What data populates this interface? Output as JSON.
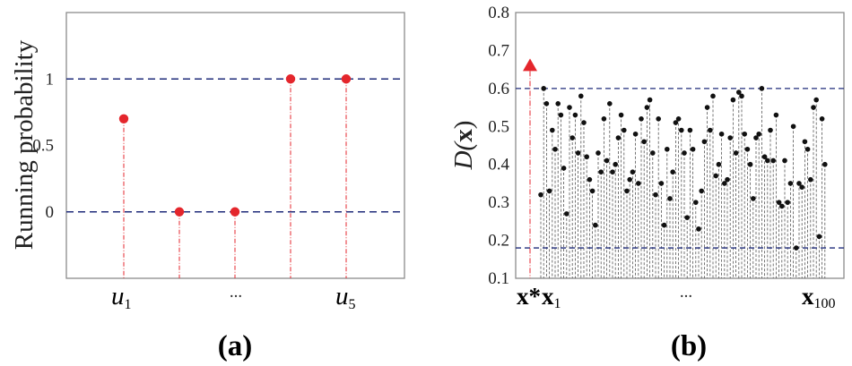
{
  "chart_data": [
    {
      "type": "scatter",
      "panel_label": "(a)",
      "ylabel": "Running probability",
      "yticks": [
        "1",
        "0.5",
        "0"
      ],
      "ylim": [
        -0.5,
        1.5
      ],
      "reference_lines": [
        1,
        0
      ],
      "x_labels": [
        {
          "base": "u",
          "sub": "1"
        },
        {
          "base": "...",
          "sub": ""
        },
        {
          "base": "u",
          "sub": "5"
        }
      ],
      "points": [
        {
          "x": 1,
          "y": 0.7
        },
        {
          "x": 2,
          "y": 0
        },
        {
          "x": 3,
          "y": 0
        },
        {
          "x": 4,
          "y": 1
        },
        {
          "x": 5,
          "y": 1
        }
      ],
      "colors": {
        "point": "#e4262c",
        "stem": "#e4262c",
        "reference": "#1f2b7a"
      }
    },
    {
      "type": "scatter",
      "panel_label": "(b)",
      "ylabel": {
        "base": "D(",
        "var": "x",
        "close": ")"
      },
      "ylim": [
        0.1,
        0.8
      ],
      "yticks": [
        "0.8",
        "0.7",
        "0.6",
        "0.5",
        "0.4",
        "0.3",
        "0.2",
        "0.1"
      ],
      "reference_lines": [
        0.6,
        0.18
      ],
      "x_labels": [
        {
          "base": "x*",
          "sub": ""
        },
        {
          "base": "x",
          "sub": "1"
        },
        {
          "base": "...",
          "sub": ""
        },
        {
          "base": "x",
          "sub": "100"
        }
      ],
      "marker": {
        "label": "x*",
        "y": 0.66
      },
      "points": [
        0.32,
        0.6,
        0.56,
        0.33,
        0.49,
        0.44,
        0.56,
        0.53,
        0.39,
        0.27,
        0.55,
        0.47,
        0.53,
        0.43,
        0.58,
        0.51,
        0.42,
        0.36,
        0.33,
        0.24,
        0.43,
        0.38,
        0.52,
        0.41,
        0.56,
        0.38,
        0.4,
        0.47,
        0.53,
        0.49,
        0.33,
        0.36,
        0.38,
        0.48,
        0.35,
        0.52,
        0.46,
        0.55,
        0.57,
        0.43,
        0.32,
        0.52,
        0.35,
        0.24,
        0.44,
        0.31,
        0.38,
        0.51,
        0.52,
        0.49,
        0.43,
        0.26,
        0.49,
        0.44,
        0.3,
        0.23,
        0.33,
        0.46,
        0.55,
        0.49,
        0.58,
        0.37,
        0.4,
        0.48,
        0.35,
        0.36,
        0.47,
        0.57,
        0.43,
        0.59,
        0.58,
        0.48,
        0.44,
        0.4,
        0.31,
        0.47,
        0.48,
        0.6,
        0.42,
        0.41,
        0.49,
        0.41,
        0.53,
        0.3,
        0.29,
        0.41,
        0.3,
        0.35,
        0.5,
        0.18,
        0.35,
        0.34,
        0.46,
        0.44,
        0.36,
        0.55,
        0.57,
        0.21,
        0.52,
        0.4
      ],
      "colors": {
        "point": "#111111",
        "stem": "#555555",
        "reference": "#1f2b7a",
        "marker": "#e4262c",
        "marker_stem": "#e4262c"
      }
    }
  ]
}
